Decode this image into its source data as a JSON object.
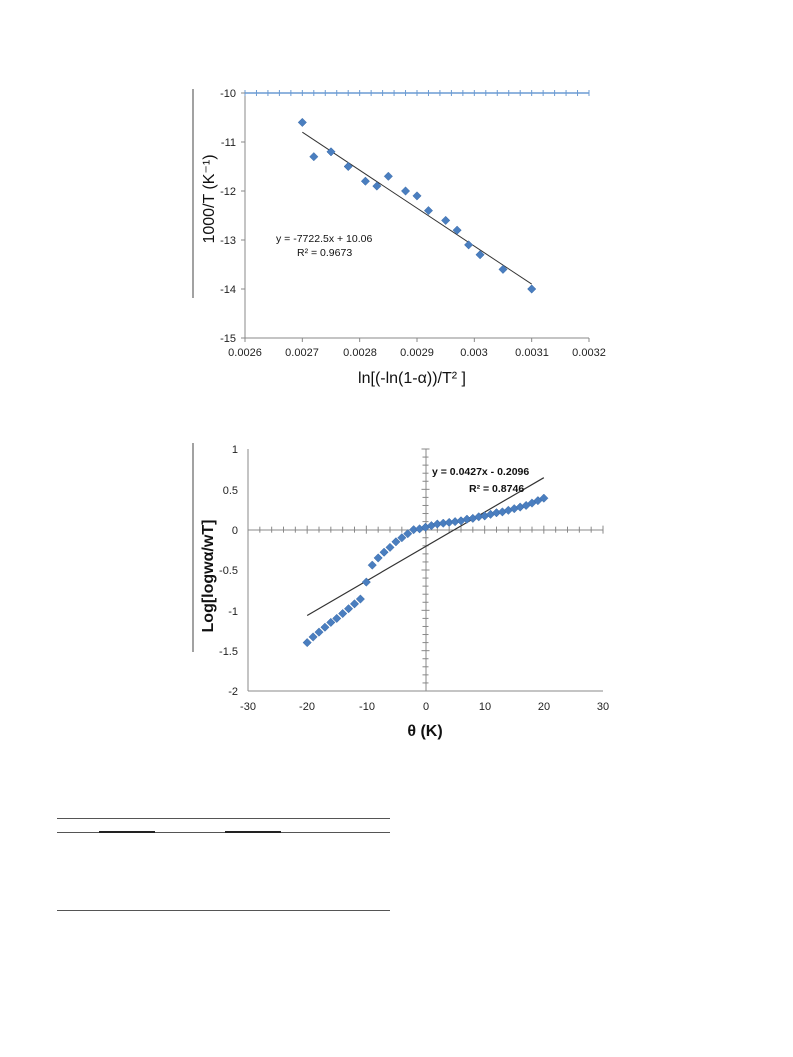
{
  "chart_data": [
    {
      "type": "scatter",
      "title": "",
      "xlabel": "ln[(-ln(1-α))/T² ]",
      "ylabel": "1000/T (K⁻¹)",
      "xlim": [
        0.0026,
        0.0032
      ],
      "ylim": [
        -15,
        -10
      ],
      "x_ticks": [
        "0.0026",
        "0.0027",
        "0.0028",
        "0.0029",
        "0.003",
        "0.0031",
        "0.0032"
      ],
      "y_ticks": [
        "-10",
        "-11",
        "-12",
        "-13",
        "-14",
        "-15"
      ],
      "grid": false,
      "marker_color": "#4a7ebf",
      "series": [
        {
          "x": [
            0.0027,
            0.00272,
            0.00275,
            0.00278,
            0.00281,
            0.00283,
            0.00285,
            0.00288,
            0.0029,
            0.00292,
            0.00295,
            0.00297,
            0.00299,
            0.00301,
            0.00305,
            0.0031
          ],
          "y": [
            -10.6,
            -11.3,
            -11.2,
            -11.5,
            -11.8,
            -11.9,
            -11.7,
            -12.0,
            -12.1,
            -12.4,
            -12.6,
            -12.8,
            -13.1,
            -13.3,
            -13.6,
            -14.0
          ]
        }
      ],
      "trendline": {
        "slope": -7722.5,
        "intercept": 10.06,
        "x_range": [
          0.0027,
          0.0031
        ],
        "y_range": [
          -10.8,
          -13.9
        ]
      },
      "annotations": [
        "y = -7722.5x + 10.06",
        "R² = 0.9673"
      ]
    },
    {
      "type": "scatter",
      "title": "",
      "xlabel": "θ (K)",
      "ylabel": "Log[logwα/wT]",
      "xlim": [
        -30,
        30
      ],
      "ylim": [
        -2,
        1
      ],
      "x_ticks": [
        "-30",
        "-20",
        "-10",
        "0",
        "10",
        "20",
        "30"
      ],
      "y_ticks": [
        "1",
        "0.5",
        "0",
        "-0.5",
        "-1",
        "-1.5",
        "-2"
      ],
      "grid": false,
      "marker_color": "#4a7ebf",
      "series": [
        {
          "x": [
            -20,
            -19,
            -18,
            -17,
            -16,
            -15,
            -14,
            -13,
            -12,
            -11,
            -10,
            -9,
            -8,
            -7,
            -6,
            -5,
            -4,
            -3,
            -2,
            -1,
            0,
            1,
            2,
            3,
            4,
            5,
            6,
            7,
            8,
            9,
            10,
            11,
            12,
            13,
            14,
            15,
            16,
            17,
            18,
            19,
            20
          ],
          "y": [
            -1.4,
            -1.33,
            -1.27,
            -1.21,
            -1.15,
            -1.1,
            -1.04,
            -0.98,
            -0.92,
            -0.86,
            -0.65,
            -0.44,
            -0.35,
            -0.28,
            -0.22,
            -0.15,
            -0.1,
            -0.05,
            0.0,
            0.01,
            0.03,
            0.05,
            0.07,
            0.08,
            0.09,
            0.1,
            0.11,
            0.13,
            0.14,
            0.16,
            0.17,
            0.19,
            0.21,
            0.22,
            0.24,
            0.26,
            0.28,
            0.3,
            0.33,
            0.36,
            0.39
          ]
        }
      ],
      "trendline": {
        "slope": 0.0427,
        "intercept": -0.2096,
        "x_range": [
          -20,
          20
        ]
      },
      "annotations": [
        "y = 0.0427x - 0.2096",
        "R² = 0.8746"
      ]
    }
  ]
}
